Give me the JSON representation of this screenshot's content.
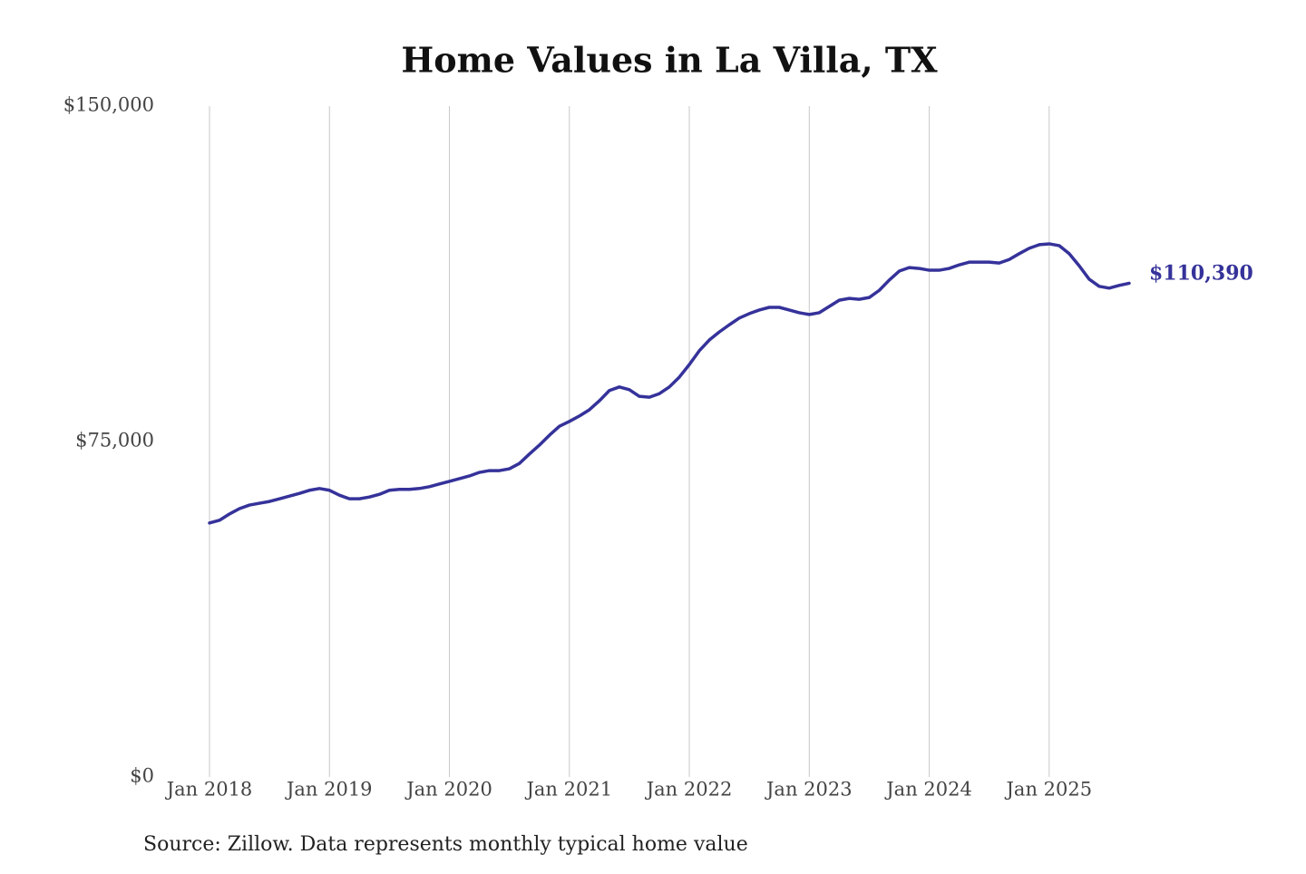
{
  "chart_data": {
    "type": "line",
    "title": "Home Values in La Villa, TX",
    "source": "Source: Zillow. Data represents monthly typical home value",
    "color": "#35329a",
    "x": [
      "2018-01",
      "2018-02",
      "2018-03",
      "2018-04",
      "2018-05",
      "2018-06",
      "2018-07",
      "2018-08",
      "2018-09",
      "2018-10",
      "2018-11",
      "2018-12",
      "2019-01",
      "2019-02",
      "2019-03",
      "2019-04",
      "2019-05",
      "2019-06",
      "2019-07",
      "2019-08",
      "2019-09",
      "2019-10",
      "2019-11",
      "2019-12",
      "2020-01",
      "2020-02",
      "2020-03",
      "2020-04",
      "2020-05",
      "2020-06",
      "2020-07",
      "2020-08",
      "2020-09",
      "2020-10",
      "2020-11",
      "2020-12",
      "2021-01",
      "2021-02",
      "2021-03",
      "2021-04",
      "2021-05",
      "2021-06",
      "2021-07",
      "2021-08",
      "2021-09",
      "2021-10",
      "2021-11",
      "2021-12",
      "2022-01",
      "2022-02",
      "2022-03",
      "2022-04",
      "2022-05",
      "2022-06",
      "2022-07",
      "2022-08",
      "2022-09",
      "2022-10",
      "2022-11",
      "2022-12",
      "2023-01",
      "2023-02",
      "2023-03",
      "2023-04",
      "2023-05",
      "2023-06",
      "2023-07",
      "2023-08",
      "2023-09",
      "2023-10",
      "2023-11",
      "2023-12",
      "2024-01",
      "2024-02",
      "2024-03",
      "2024-04",
      "2024-05",
      "2024-06",
      "2024-07",
      "2024-08",
      "2024-09",
      "2024-10",
      "2024-11",
      "2024-12",
      "2025-01",
      "2025-02",
      "2025-03",
      "2025-04",
      "2025-05",
      "2025-06",
      "2025-07",
      "2025-08",
      "2025-09"
    ],
    "values": [
      56800,
      57400,
      58800,
      60000,
      60800,
      61200,
      61600,
      62200,
      62800,
      63400,
      64100,
      64500,
      64100,
      63000,
      62200,
      62200,
      62600,
      63200,
      64100,
      64300,
      64300,
      64500,
      64900,
      65500,
      66100,
      66700,
      67300,
      68100,
      68500,
      68500,
      68900,
      70100,
      72200,
      74200,
      76400,
      78400,
      79500,
      80700,
      82100,
      84100,
      86400,
      87200,
      86600,
      85100,
      84900,
      85700,
      87200,
      89400,
      92200,
      95300,
      97700,
      99500,
      101100,
      102600,
      103600,
      104400,
      105000,
      105000,
      104400,
      103800,
      103400,
      103800,
      105200,
      106600,
      107000,
      106800,
      107200,
      108800,
      111100,
      113100,
      113900,
      113700,
      113300,
      113300,
      113700,
      114500,
      115100,
      115100,
      115100,
      114900,
      115700,
      117000,
      118200,
      119000,
      119200,
      118800,
      117000,
      114300,
      111300,
      109700,
      109300,
      109900,
      110390
    ],
    "value_labels": [
      null,
      null,
      null,
      null,
      null,
      null,
      null,
      null,
      null,
      null,
      null,
      null,
      null,
      null,
      null,
      null,
      null,
      null,
      null,
      null,
      null,
      null,
      null,
      null,
      null,
      null,
      null,
      null,
      null,
      null,
      null,
      null,
      null,
      null,
      null,
      null,
      null,
      null,
      null,
      null,
      null,
      null,
      null,
      null,
      null,
      null,
      null,
      null,
      null,
      null,
      null,
      null,
      null,
      null,
      null,
      null,
      null,
      null,
      null,
      null,
      null,
      null,
      null,
      null,
      null,
      null,
      null,
      null,
      null,
      null,
      null,
      null,
      null,
      null,
      null,
      null,
      null,
      null,
      null,
      null,
      null,
      null,
      null,
      null,
      null,
      null,
      null,
      null,
      null,
      null,
      null,
      null,
      "$110,390"
    ],
    "xlim": [
      "2018-01",
      "2025-09"
    ],
    "xticks": [
      {
        "value": "2018-01",
        "label": "Jan 2018"
      },
      {
        "value": "2019-01",
        "label": "Jan 2019"
      },
      {
        "value": "2020-01",
        "label": "Jan 2020"
      },
      {
        "value": "2021-01",
        "label": "Jan 2021"
      },
      {
        "value": "2022-01",
        "label": "Jan 2022"
      },
      {
        "value": "2023-01",
        "label": "Jan 2023"
      },
      {
        "value": "2024-01",
        "label": "Jan 2024"
      },
      {
        "value": "2025-01",
        "label": "Jan 2025"
      }
    ],
    "ylim": [
      0,
      150000
    ],
    "yticks": [
      {
        "value": 0,
        "label": "$0"
      },
      {
        "value": 75000,
        "label": "$75,000"
      },
      {
        "value": 150000,
        "label": "$150,000"
      }
    ],
    "grid": "x"
  }
}
